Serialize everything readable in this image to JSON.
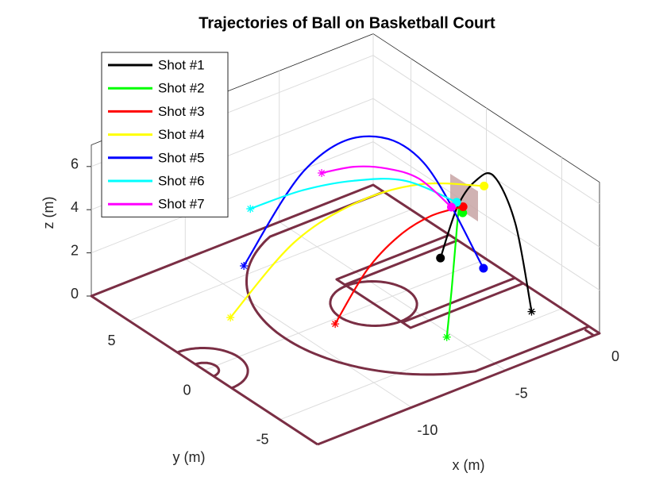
{
  "chart_data": {
    "type": "line3d",
    "title": "Trajectories of Ball on Basketball Court",
    "xlabel": "x (m)",
    "ylabel": "y (m)",
    "zlabel": "z (m)",
    "xlim": [
      -15,
      0
    ],
    "ylim": [
      -7.5,
      7.5
    ],
    "zlim": [
      0,
      7
    ],
    "xticks": [
      -10,
      -5,
      0
    ],
    "yticks": [
      -5,
      0,
      5
    ],
    "zticks": [
      0,
      2,
      4,
      6
    ],
    "grid": true,
    "legend": "northwest",
    "series": [
      {
        "name": "Shot #1",
        "color": "#000000",
        "x": [
          -2.25,
          -2.15,
          -2.0,
          -1.85,
          -1.7,
          -1.8
        ],
        "y": [
          -5.8,
          -4.6,
          -3.0,
          -1.6,
          -0.2,
          0.8
        ],
        "z": [
          1,
          4.5,
          5.9,
          5.0,
          3.1,
          0.3
        ]
      },
      {
        "name": "Shot #2",
        "color": "#00ff00",
        "x": [
          -6.36,
          -5.1,
          -3.9,
          -2.7,
          -1.5
        ],
        "y": [
          -5.3,
          -4.05,
          -2.8,
          -1.55,
          -0.3
        ],
        "z": [
          1,
          2.2,
          3.2,
          4,
          2.8
        ]
      },
      {
        "name": "Shot #3",
        "color": "#ff0000",
        "x": [
          -9.4,
          -7.4,
          -5.4,
          -3.4,
          -1.4
        ],
        "y": [
          -1.69,
          -1.32,
          -0.95,
          -0.57,
          -0.2
        ],
        "z": [
          1,
          2.65,
          3.37,
          3.43,
          3.0
        ]
      },
      {
        "name": "Shot #4",
        "color": "#ffff00",
        "x": [
          -12.56,
          -9.47,
          -6.38,
          -3.29,
          -0.2
        ],
        "y": [
          1.32,
          0.97,
          0.61,
          0.26,
          -0.1
        ],
        "z": [
          1,
          3.56,
          4.54,
          4.48,
          3.5
        ]
      },
      {
        "name": "Shot #5",
        "color": "#0000ff",
        "x": [
          -10.59,
          -8.49,
          -6.4,
          -4.3,
          -2.2
        ],
        "y": [
          2.88,
          1.52,
          0.17,
          -1.19,
          -2.55
        ],
        "z": [
          2,
          6.3,
          7.8,
          6.5,
          1.5
        ]
      },
      {
        "name": "Shot #6",
        "color": "#00ffff",
        "x": [
          -9.67,
          -7.63,
          -5.59,
          -3.54,
          -1.5
        ],
        "y": [
          3.6,
          2.72,
          1.85,
          0.97,
          0.1
        ],
        "z": [
          4,
          4.55,
          4.7,
          4.4,
          3.1
        ]
      },
      {
        "name": "Shot #7",
        "color": "#ff00ff",
        "x": [
          -6.58,
          -5.36,
          -4.14,
          -2.92,
          -1.7
        ],
        "y": [
          2.72,
          2.09,
          1.46,
          0.83,
          0.2
        ],
        "z": [
          5,
          5.16,
          4.95,
          4.35,
          2.9
        ]
      }
    ]
  }
}
